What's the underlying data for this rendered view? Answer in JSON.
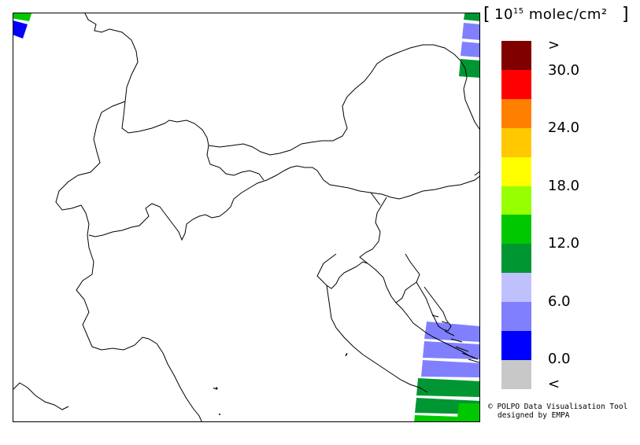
{
  "legend": {
    "unit_exponent": "15",
    "unit_prefix": "10",
    "unit_suffix": " molec/cm²",
    "bins": [
      {
        "color": "#800000"
      },
      {
        "color": "#ff0000"
      },
      {
        "color": "#ff7f00"
      },
      {
        "color": "#ffc800"
      },
      {
        "color": "#ffff00"
      },
      {
        "color": "#96ff00"
      },
      {
        "color": "#00c800"
      },
      {
        "color": "#009632"
      },
      {
        "color": "#c0c0ff"
      },
      {
        "color": "#8080ff"
      },
      {
        "color": "#0000ff"
      },
      {
        "color": "#c8c8c8"
      }
    ],
    "labels": [
      ">",
      "30.0",
      "24.0",
      "18.0",
      "12.0",
      "6.0",
      "0.0",
      "<"
    ]
  },
  "credit": {
    "line1": "© POLPO Data Visualisation Tool",
    "line2": "designed by EMPA"
  },
  "colors": {
    "border": "#000000",
    "background": "#ffffff"
  }
}
